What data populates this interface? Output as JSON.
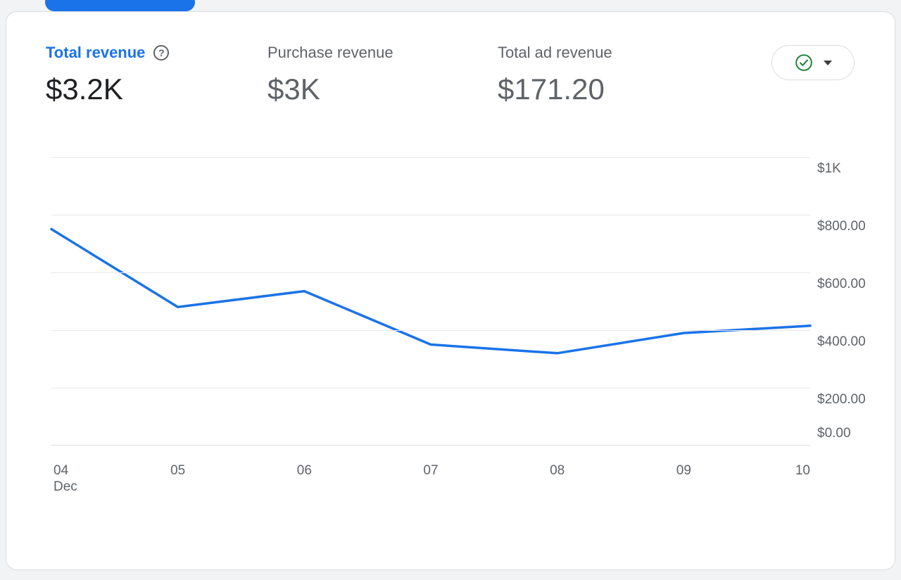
{
  "colors": {
    "accent_blue": "#1a73e8",
    "text_dark": "#202124",
    "text_gray": "#5f6368",
    "green": "#188038",
    "gridline": "#e8e8e8",
    "card_border": "#dadce0",
    "page_bg": "#f1f3f4"
  },
  "metrics": [
    {
      "label": "Total revenue",
      "value": "$3.2K",
      "active": true
    },
    {
      "label": "Purchase revenue",
      "value": "$3K",
      "active": false
    },
    {
      "label": "Total ad revenue",
      "value": "$171.20",
      "active": false
    }
  ],
  "help_icon_glyph": "?",
  "status_dropdown": {
    "status_icon": "check-circle",
    "caret_icon": "caret-down"
  },
  "chart_data": {
    "type": "line",
    "title": "Total revenue",
    "x": [
      "04",
      "05",
      "06",
      "07",
      "08",
      "09",
      "10"
    ],
    "x_sublabel": "Dec",
    "series": [
      {
        "name": "Total revenue",
        "values": [
          750,
          480,
          535,
          350,
          320,
          390,
          415
        ]
      }
    ],
    "ylim": [
      0,
      1000
    ],
    "yticks": [
      1000,
      800,
      600,
      400,
      200,
      0
    ],
    "ytick_labels": [
      "$1K",
      "$800.00",
      "$600.00",
      "$400.00",
      "$200.00",
      "$0.00"
    ],
    "line_color": "#1a73e8",
    "grid": true,
    "legend": "none"
  }
}
